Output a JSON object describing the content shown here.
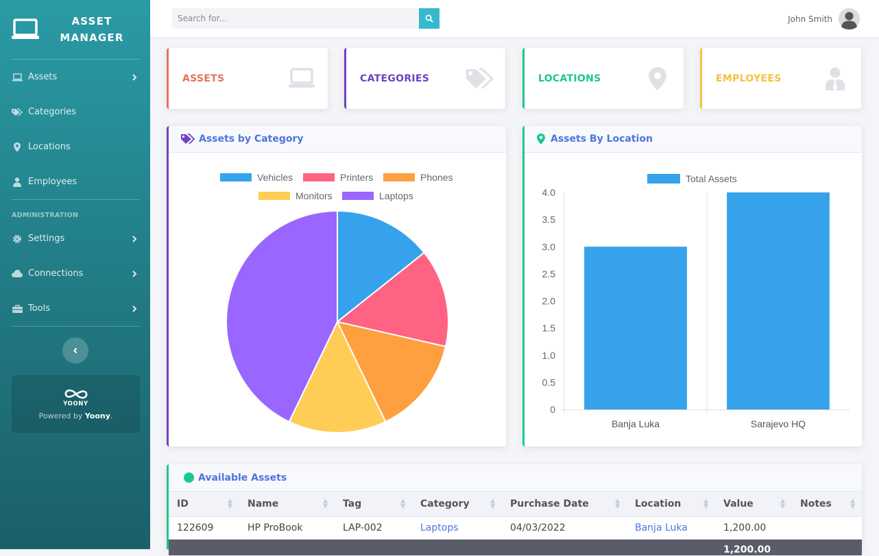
{
  "app": {
    "title_line1": "ASSET",
    "title_line2": "MANAGER"
  },
  "sidebar": {
    "items": [
      {
        "label": "Assets",
        "icon": "laptop-icon",
        "has_submenu": true
      },
      {
        "label": "Categories",
        "icon": "tags-icon",
        "has_submenu": false
      },
      {
        "label": "Locations",
        "icon": "map-marker-icon",
        "has_submenu": false
      },
      {
        "label": "Employees",
        "icon": "user-tie-icon",
        "has_submenu": false
      }
    ],
    "admin_heading": "ADMINISTRATION",
    "admin_items": [
      {
        "label": "Settings",
        "icon": "gear-icon",
        "has_submenu": true
      },
      {
        "label": "Connections",
        "icon": "cloud-icon",
        "has_submenu": true
      },
      {
        "label": "Tools",
        "icon": "toolbox-icon",
        "has_submenu": true
      }
    ],
    "promo": {
      "logo_text": "YOONY",
      "powered_prefix": "Powered by",
      "powered_brand": "Yoony",
      "powered_suffix": "."
    }
  },
  "topbar": {
    "search_placeholder": "Search for...",
    "user_name": "John Smith"
  },
  "stats": [
    {
      "label": "ASSETS",
      "color": "#e8705a",
      "icon": "laptop-icon"
    },
    {
      "label": "CATEGORIES",
      "color": "#6f42c1",
      "icon": "tags-icon"
    },
    {
      "label": "LOCATIONS",
      "color": "#1cc88a",
      "icon": "map-marker-icon"
    },
    {
      "label": "EMPLOYEES",
      "color": "#f6c23e",
      "icon": "user-tie-icon"
    }
  ],
  "panels": {
    "by_category": {
      "title": "Assets by Category",
      "accent": "#6f42c1"
    },
    "by_location": {
      "title": "Assets By Location",
      "accent": "#1cc88a"
    }
  },
  "chart_data": [
    {
      "type": "pie",
      "categories": [
        "Vehicles",
        "Printers",
        "Phones",
        "Monitors",
        "Laptops"
      ],
      "values": [
        1,
        1,
        1,
        1,
        3
      ],
      "colors": [
        "#36a2eb",
        "#ff6384",
        "#ff9f40",
        "#ffcd56",
        "#9966ff"
      ],
      "legend": "top"
    },
    {
      "type": "bar",
      "categories": [
        "Banja Luka",
        "Sarajevo HQ"
      ],
      "series": [
        {
          "name": "Total Assets",
          "values": [
            3,
            4
          ],
          "color": "#36a2eb"
        }
      ],
      "y_ticks": [
        "4.0",
        "3.5",
        "3.0",
        "2.5",
        "2.0",
        "1.5",
        "1.0",
        "0.5",
        "0"
      ],
      "ylim": [
        0,
        4
      ],
      "legend": "top"
    }
  ],
  "table": {
    "title": "Available Assets",
    "columns": [
      "ID",
      "Name",
      "Tag",
      "Category",
      "Purchase Date",
      "Location",
      "Value",
      "Notes"
    ],
    "rows": [
      [
        "122609",
        "HP ProBook",
        "LAP-002",
        "Laptops",
        "04/03/2022",
        "Banja Luka",
        "1,200.00",
        ""
      ]
    ],
    "summary_value": "1,200.00"
  }
}
